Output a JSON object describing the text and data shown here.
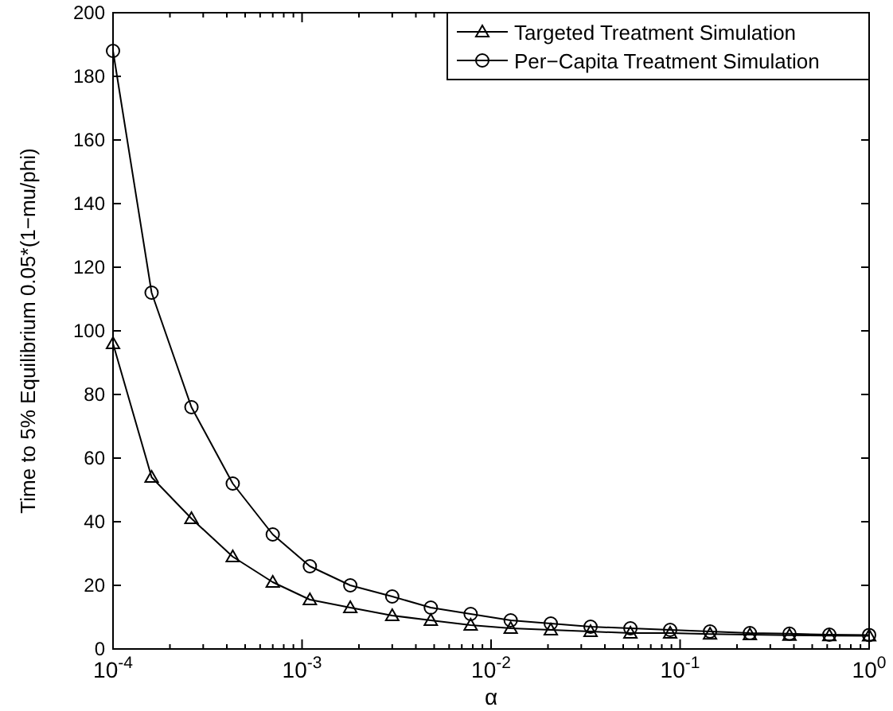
{
  "chart_data": {
    "type": "line",
    "xlabel": "α",
    "ylabel": "Time to 5% Equilibrium 0.05*(1−mu/phi)",
    "log": "x",
    "legend": "top right",
    "grid": false,
    "x": [
      0.0001,
      0.00016,
      0.00026,
      0.00043,
      0.0007,
      0.0011,
      0.0018,
      0.003,
      0.0048,
      0.0078,
      0.0127,
      0.0207,
      0.0336,
      0.0546,
      0.0886,
      0.144,
      0.234,
      0.379,
      0.616,
      1
    ],
    "series": [
      {
        "name": "Targeted Treatment Simulation",
        "color": "#000000",
        "marker": "triangle",
        "values": [
          96,
          54,
          41,
          29,
          21,
          15.5,
          13,
          10.5,
          9,
          7.5,
          6.5,
          6,
          5.5,
          5,
          5,
          4.7,
          4.5,
          4.3,
          4.2,
          4.1
        ]
      },
      {
        "name": "Per−Capita Treatment Simulation",
        "color": "#000000",
        "marker": "circle",
        "values": [
          188,
          112,
          76,
          52,
          36,
          26,
          20,
          16.5,
          13,
          11,
          9,
          8,
          7,
          6.5,
          6,
          5.5,
          5,
          4.8,
          4.5,
          4.4
        ]
      }
    ],
    "xlim": [
      0.0001,
      1
    ],
    "xticks": [
      {
        "value": 0.0001,
        "label": "10$^{-4}$"
      },
      {
        "value": 0.001,
        "label": "10$^{-3}$"
      },
      {
        "value": 0.01,
        "label": "10$^{-2}$"
      },
      {
        "value": 0.1,
        "label": "10$^{-1}$"
      },
      {
        "value": 1,
        "label": "10$^{0}$"
      }
    ],
    "ylim": [
      0,
      200
    ],
    "yticks": [
      0,
      20,
      40,
      60,
      80,
      100,
      120,
      140,
      160,
      180,
      200
    ]
  }
}
